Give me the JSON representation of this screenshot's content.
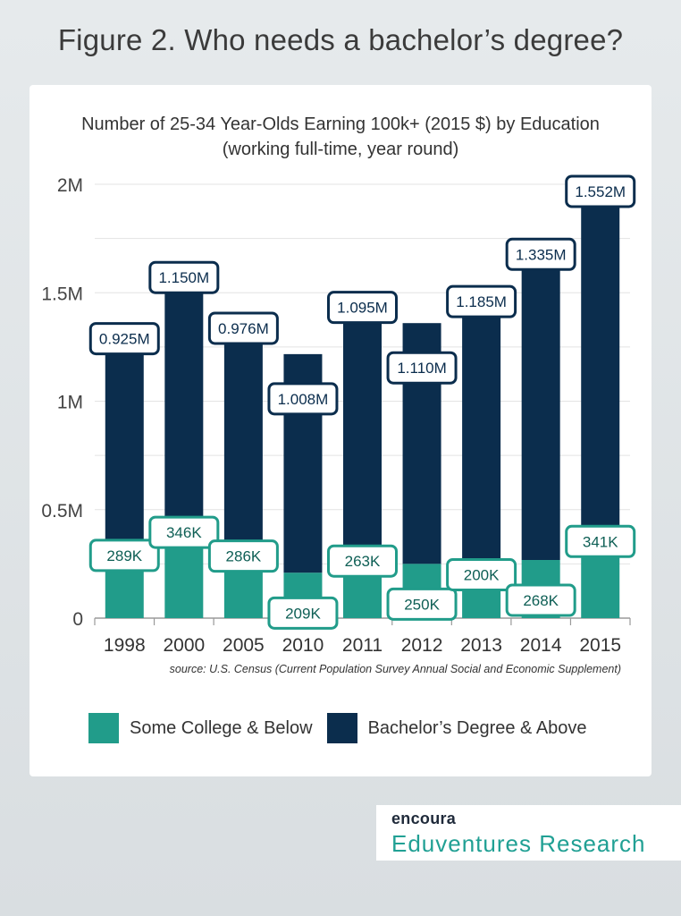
{
  "page": {
    "title": "Figure 2. Who needs a bachelor’s degree?"
  },
  "chart_data": {
    "type": "bar",
    "stacked": true,
    "title": "Number of 25-34 Year-Olds Earning 100k+ (2015 $) by Education",
    "subtitle": "(working full-time, year round)",
    "categories": [
      "1998",
      "2000",
      "2005",
      "2010",
      "2011",
      "2012",
      "2013",
      "2014",
      "2015"
    ],
    "series": [
      {
        "name": "Some College & Below",
        "color": "#219c8a",
        "values": [
          289000,
          346000,
          286000,
          209000,
          263000,
          250000,
          200000,
          268000,
          341000
        ],
        "labels": [
          "289K",
          "346K",
          "286K",
          "209K",
          "263K",
          "250K",
          "200K",
          "268K",
          "341K"
        ]
      },
      {
        "name": "Bachelor’s Degree & Above",
        "color": "#0b2d4d",
        "values": [
          925000,
          1150000,
          976000,
          1008000,
          1095000,
          1110000,
          1185000,
          1335000,
          1552000
        ],
        "labels": [
          "0.925M",
          "1.150M",
          "0.976M",
          "1.008M",
          "1.095M",
          "1.110M",
          "1.185M",
          "1.335M",
          "1.552M"
        ]
      }
    ],
    "yticks": [
      0,
      500000,
      1000000,
      1500000,
      2000000
    ],
    "ytick_labels": [
      "0",
      "0.5M",
      "1M",
      "1.5M",
      "2M"
    ],
    "ylim": [
      0,
      2000000
    ],
    "grid": true,
    "source": "source: U.S. Census (Current Population Survey Annual Social and Economic Supplement)",
    "legend": {
      "placement": "bottom"
    }
  },
  "brand": {
    "logo": "encoura",
    "name": "Eduventures Research"
  }
}
